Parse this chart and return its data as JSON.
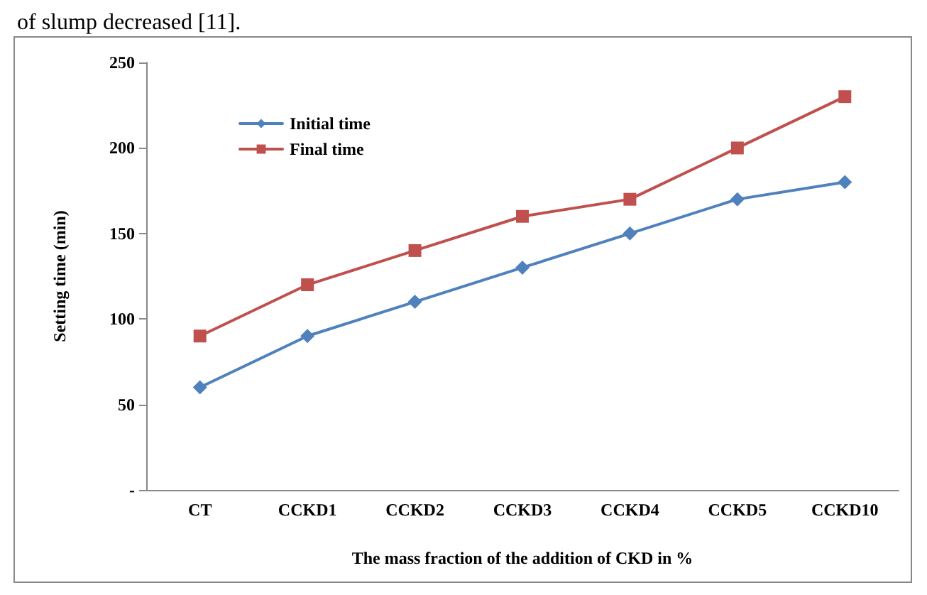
{
  "chart_data": {
    "type": "line",
    "xlabel": "The mass fraction of the addition of CKD in %",
    "ylabel": "Setting time (min)",
    "annotations": [
      "of slump decreased [11]."
    ],
    "categories": [
      "CT",
      "CCKD1",
      "CCKD2",
      "CCKD3",
      "CCKD4",
      "CCKD5",
      "CCKD10"
    ],
    "series": [
      {
        "name": "Initial time",
        "color": "#4f81bd",
        "marker": "diamond",
        "values": [
          60,
          90,
          110,
          130,
          150,
          170,
          180
        ]
      },
      {
        "name": "Final time",
        "color": "#c0504d",
        "marker": "square",
        "values": [
          90,
          120,
          140,
          160,
          170,
          200,
          230
        ]
      }
    ],
    "ylim": [
      0,
      250
    ],
    "yticks": [
      {
        "value": 0,
        "label": "-"
      },
      50,
      100,
      150,
      200,
      250
    ],
    "grid": false,
    "legend": "top left",
    "line_style": "solid"
  }
}
